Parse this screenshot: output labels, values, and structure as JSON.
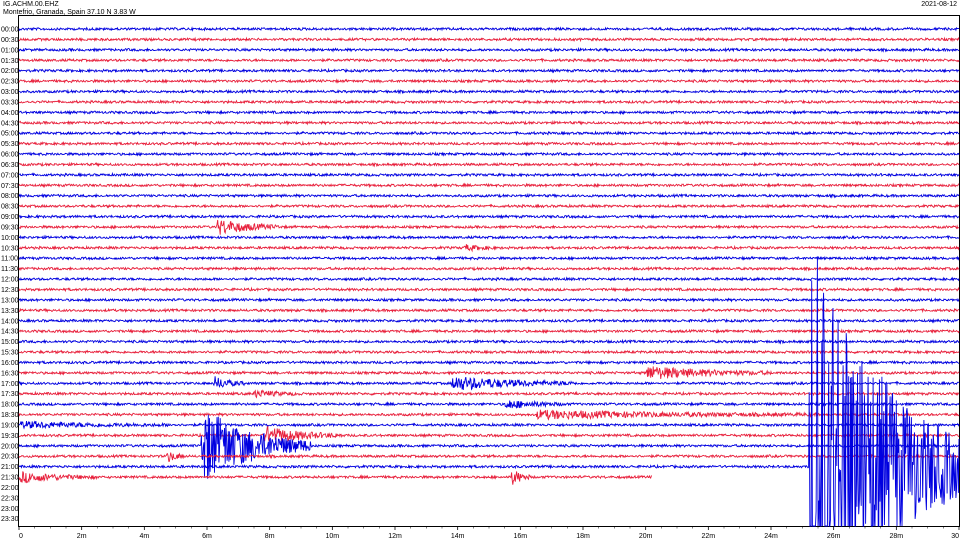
{
  "header": {
    "station": "IG.ACHM.00.EHZ",
    "location": "Montefrio, Granada, Spain  37.10 N 3.83 W",
    "date": "2021-08-12"
  },
  "chart_data": {
    "type": "line",
    "title": "IG.ACHM.00.EHZ",
    "subtitle": "Montefrio, Granada, Spain  37.10 N 3.83 W",
    "xlabel": "",
    "ylabel": "",
    "x_unit": "minutes",
    "xlim": [
      0,
      30
    ],
    "x_ticks": [
      "0",
      "2m",
      "4m",
      "6m",
      "8m",
      "10m",
      "12m",
      "14m",
      "16m",
      "18m",
      "20m",
      "22m",
      "24m",
      "26m",
      "28m",
      "30"
    ],
    "row_labels": [
      "00:00",
      "00:30",
      "01:00",
      "01:30",
      "02:00",
      "02:30",
      "03:00",
      "03:30",
      "04:00",
      "04:30",
      "05:00",
      "05:30",
      "06:00",
      "06:30",
      "07:00",
      "07:30",
      "08:00",
      "08:30",
      "09:00",
      "09:30",
      "10:00",
      "10:30",
      "11:00",
      "11:30",
      "12:00",
      "12:30",
      "13:00",
      "13:30",
      "14:00",
      "14:30",
      "15:00",
      "15:30",
      "16:00",
      "16:30",
      "17:00",
      "17:30",
      "18:00",
      "18:30",
      "19:00",
      "19:30",
      "20:00",
      "20:30",
      "21:00",
      "21:30",
      "22:00",
      "22:30",
      "23:00",
      "23:30"
    ],
    "series_colors": [
      "#0000e0",
      "#e8203c"
    ],
    "trace_end": {
      "row_label": "21:30",
      "minute": 20.2
    },
    "grid": false,
    "legend": "none",
    "events": [
      {
        "row_label": "09:30",
        "start_min": 6.3,
        "duration_min": 2.0,
        "amplitude": 1.8
      },
      {
        "row_label": "10:30",
        "start_min": 14.2,
        "duration_min": 1.0,
        "amplitude": 0.7
      },
      {
        "row_label": "16:30",
        "start_min": 20.0,
        "duration_min": 4.0,
        "amplitude": 1.5
      },
      {
        "row_label": "17:00",
        "start_min": 6.2,
        "duration_min": 1.0,
        "amplitude": 1.5
      },
      {
        "row_label": "17:00",
        "start_min": 13.8,
        "duration_min": 4.0,
        "amplitude": 1.6
      },
      {
        "row_label": "17:30",
        "start_min": 7.5,
        "duration_min": 1.5,
        "amplitude": 0.8
      },
      {
        "row_label": "18:00",
        "start_min": 15.5,
        "duration_min": 2.0,
        "amplitude": 1.0
      },
      {
        "row_label": "18:30",
        "start_min": 16.5,
        "duration_min": 9.0,
        "amplitude": 0.9
      },
      {
        "row_label": "19:00",
        "start_min": 0.0,
        "duration_min": 5.0,
        "amplitude": 0.7
      },
      {
        "row_label": "19:30",
        "start_min": 7.8,
        "duration_min": 2.5,
        "amplitude": 2.0
      },
      {
        "row_label": "20:00",
        "start_min": 5.8,
        "duration_min": 3.5,
        "amplitude": 9.0
      },
      {
        "row_label": "20:30",
        "start_min": 4.7,
        "duration_min": 0.6,
        "amplitude": 1.5
      },
      {
        "row_label": "21:30",
        "start_min": 0.0,
        "duration_min": 2.5,
        "amplitude": 1.2
      },
      {
        "row_label": "21:30",
        "start_min": 15.7,
        "duration_min": 0.6,
        "amplitude": 2.2
      },
      {
        "row_label": "21:00",
        "start_min": 25.2,
        "duration_min": 4.8,
        "amplitude": 60
      }
    ]
  }
}
